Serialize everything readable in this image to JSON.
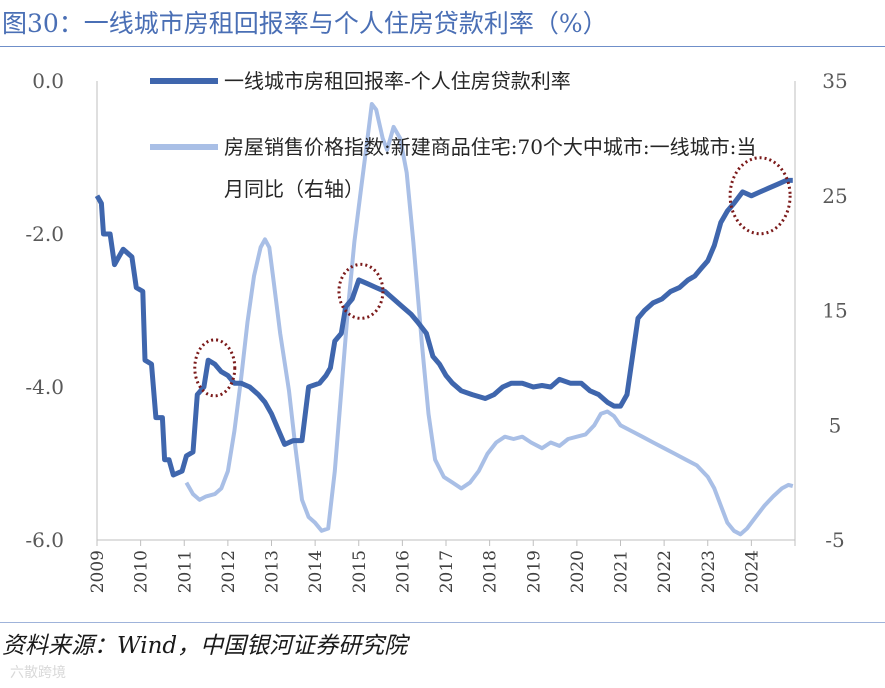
{
  "title": "图30：一线城市房租回报率与个人住房贷款利率（%）",
  "source": "资料来源：Wind，中国银河证券研究院",
  "watermark": "六散跨境",
  "colors": {
    "series1": "#3f66ad",
    "series2": "#a9bfe6",
    "highlight": "#7b1a1a",
    "axis": "#bfbfbf"
  },
  "chart_data": {
    "type": "line",
    "title": "",
    "y_left": {
      "min": -6,
      "max": 0,
      "ticks": [
        "0.0",
        "-2.0",
        "-4.0",
        "-6.0"
      ],
      "tick_values": [
        0,
        -2,
        -4,
        -6
      ]
    },
    "y_right": {
      "min": -5,
      "max": 35,
      "ticks": [
        "35",
        "25",
        "15",
        "5",
        "-5"
      ],
      "tick_values": [
        35,
        25,
        15,
        5,
        -5
      ]
    },
    "x": {
      "min": 2009,
      "max": 2025,
      "ticks": [
        "2009",
        "2010",
        "2011",
        "2012",
        "2013",
        "2014",
        "2015",
        "2016",
        "2017",
        "2018",
        "2019",
        "2020",
        "2021",
        "2022",
        "2023",
        "2024"
      ]
    },
    "legend": [
      "一线城市房租回报率-个人住房贷款利率",
      "房屋销售价格指数:新建商品住宅:70个大中城市:一线城市:当",
      "月同比（右轴）"
    ],
    "series": [
      {
        "name": "一线城市房租回报率-个人住房贷款利率",
        "axis": "left",
        "points": [
          [
            2009.0,
            -1.5
          ],
          [
            2009.1,
            -1.6
          ],
          [
            2009.15,
            -2.0
          ],
          [
            2009.3,
            -2.0
          ],
          [
            2009.4,
            -2.4
          ],
          [
            2009.5,
            -2.3
          ],
          [
            2009.6,
            -2.2
          ],
          [
            2009.8,
            -2.3
          ],
          [
            2009.9,
            -2.7
          ],
          [
            2010.05,
            -2.75
          ],
          [
            2010.1,
            -3.65
          ],
          [
            2010.25,
            -3.7
          ],
          [
            2010.35,
            -4.4
          ],
          [
            2010.5,
            -4.4
          ],
          [
            2010.55,
            -4.95
          ],
          [
            2010.65,
            -4.95
          ],
          [
            2010.75,
            -5.15
          ],
          [
            2010.95,
            -5.1
          ],
          [
            2011.05,
            -4.9
          ],
          [
            2011.2,
            -4.85
          ],
          [
            2011.3,
            -4.1
          ],
          [
            2011.45,
            -4.0
          ],
          [
            2011.55,
            -3.65
          ],
          [
            2011.7,
            -3.7
          ],
          [
            2011.85,
            -3.8
          ],
          [
            2012.0,
            -3.85
          ],
          [
            2012.15,
            -3.95
          ],
          [
            2012.3,
            -3.95
          ],
          [
            2012.5,
            -4.0
          ],
          [
            2012.7,
            -4.1
          ],
          [
            2012.85,
            -4.2
          ],
          [
            2013.0,
            -4.35
          ],
          [
            2013.15,
            -4.55
          ],
          [
            2013.3,
            -4.75
          ],
          [
            2013.5,
            -4.7
          ],
          [
            2013.7,
            -4.7
          ],
          [
            2013.85,
            -4.0
          ],
          [
            2014.1,
            -3.95
          ],
          [
            2014.25,
            -3.85
          ],
          [
            2014.35,
            -3.75
          ],
          [
            2014.45,
            -3.4
          ],
          [
            2014.6,
            -3.3
          ],
          [
            2014.7,
            -2.95
          ],
          [
            2014.85,
            -2.85
          ],
          [
            2015.0,
            -2.6
          ],
          [
            2015.2,
            -2.65
          ],
          [
            2015.4,
            -2.7
          ],
          [
            2015.6,
            -2.75
          ],
          [
            2015.8,
            -2.85
          ],
          [
            2016.0,
            -2.95
          ],
          [
            2016.2,
            -3.05
          ],
          [
            2016.35,
            -3.15
          ],
          [
            2016.55,
            -3.3
          ],
          [
            2016.7,
            -3.6
          ],
          [
            2016.85,
            -3.7
          ],
          [
            2017.0,
            -3.85
          ],
          [
            2017.15,
            -3.95
          ],
          [
            2017.35,
            -4.05
          ],
          [
            2017.6,
            -4.1
          ],
          [
            2017.9,
            -4.15
          ],
          [
            2018.1,
            -4.1
          ],
          [
            2018.3,
            -4.0
          ],
          [
            2018.5,
            -3.95
          ],
          [
            2018.75,
            -3.95
          ],
          [
            2019.0,
            -4.0
          ],
          [
            2019.2,
            -3.98
          ],
          [
            2019.4,
            -4.0
          ],
          [
            2019.6,
            -3.9
          ],
          [
            2019.85,
            -3.95
          ],
          [
            2020.1,
            -3.95
          ],
          [
            2020.3,
            -4.05
          ],
          [
            2020.5,
            -4.1
          ],
          [
            2020.7,
            -4.2
          ],
          [
            2020.85,
            -4.25
          ],
          [
            2021.0,
            -4.25
          ],
          [
            2021.15,
            -4.1
          ],
          [
            2021.3,
            -3.5
          ],
          [
            2021.4,
            -3.1
          ],
          [
            2021.55,
            -3.0
          ],
          [
            2021.75,
            -2.9
          ],
          [
            2021.95,
            -2.85
          ],
          [
            2022.15,
            -2.75
          ],
          [
            2022.35,
            -2.7
          ],
          [
            2022.55,
            -2.6
          ],
          [
            2022.7,
            -2.55
          ],
          [
            2022.85,
            -2.45
          ],
          [
            2023.0,
            -2.35
          ],
          [
            2023.15,
            -2.15
          ],
          [
            2023.3,
            -1.85
          ],
          [
            2023.45,
            -1.7
          ],
          [
            2023.6,
            -1.6
          ],
          [
            2023.8,
            -1.45
          ],
          [
            2024.0,
            -1.5
          ],
          [
            2024.2,
            -1.45
          ],
          [
            2024.4,
            -1.4
          ],
          [
            2024.6,
            -1.35
          ],
          [
            2024.8,
            -1.3
          ],
          [
            2024.95,
            -1.3
          ]
        ]
      },
      {
        "name": "房屋销售价格指数:新建商品住宅:70个大中城市:一线城市:当月同比（右轴）",
        "axis": "right",
        "points": [
          [
            2011.05,
            0.0
          ],
          [
            2011.2,
            -1.0
          ],
          [
            2011.35,
            -1.5
          ],
          [
            2011.5,
            -1.2
          ],
          [
            2011.7,
            -1.0
          ],
          [
            2011.85,
            -0.5
          ],
          [
            2012.0,
            1.0
          ],
          [
            2012.15,
            4.5
          ],
          [
            2012.3,
            9.0
          ],
          [
            2012.45,
            14.0
          ],
          [
            2012.6,
            18.0
          ],
          [
            2012.75,
            20.5
          ],
          [
            2012.85,
            21.2
          ],
          [
            2012.95,
            20.5
          ],
          [
            2013.05,
            17.5
          ],
          [
            2013.2,
            13.0
          ],
          [
            2013.4,
            8.0
          ],
          [
            2013.55,
            3.0
          ],
          [
            2013.7,
            -1.5
          ],
          [
            2013.85,
            -3.0
          ],
          [
            2014.0,
            -3.5
          ],
          [
            2014.15,
            -4.2
          ],
          [
            2014.3,
            -4.0
          ],
          [
            2014.45,
            1.0
          ],
          [
            2014.6,
            8.0
          ],
          [
            2014.75,
            15.0
          ],
          [
            2014.9,
            21.0
          ],
          [
            2015.05,
            25.5
          ],
          [
            2015.2,
            30.0
          ],
          [
            2015.3,
            33.0
          ],
          [
            2015.4,
            32.5
          ],
          [
            2015.55,
            30.0
          ],
          [
            2015.65,
            29.0
          ],
          [
            2015.8,
            31.0
          ],
          [
            2015.95,
            30.0
          ],
          [
            2016.1,
            27.0
          ],
          [
            2016.25,
            21.0
          ],
          [
            2016.45,
            12.0
          ],
          [
            2016.6,
            6.0
          ],
          [
            2016.75,
            2.0
          ],
          [
            2016.95,
            0.5
          ],
          [
            2017.15,
            0.0
          ],
          [
            2017.35,
            -0.5
          ],
          [
            2017.55,
            0.0
          ],
          [
            2017.75,
            1.0
          ],
          [
            2017.95,
            2.5
          ],
          [
            2018.15,
            3.5
          ],
          [
            2018.35,
            4.0
          ],
          [
            2018.55,
            3.8
          ],
          [
            2018.75,
            4.0
          ],
          [
            2018.95,
            3.5
          ],
          [
            2019.2,
            3.0
          ],
          [
            2019.4,
            3.5
          ],
          [
            2019.6,
            3.2
          ],
          [
            2019.8,
            3.8
          ],
          [
            2020.0,
            4.0
          ],
          [
            2020.2,
            4.2
          ],
          [
            2020.4,
            5.0
          ],
          [
            2020.55,
            6.0
          ],
          [
            2020.7,
            6.2
          ],
          [
            2020.85,
            5.8
          ],
          [
            2021.0,
            5.0
          ],
          [
            2021.25,
            4.5
          ],
          [
            2021.5,
            4.0
          ],
          [
            2021.75,
            3.5
          ],
          [
            2022.0,
            3.0
          ],
          [
            2022.25,
            2.5
          ],
          [
            2022.5,
            2.0
          ],
          [
            2022.75,
            1.5
          ],
          [
            2023.0,
            0.5
          ],
          [
            2023.15,
            -0.5
          ],
          [
            2023.3,
            -2.0
          ],
          [
            2023.45,
            -3.5
          ],
          [
            2023.6,
            -4.2
          ],
          [
            2023.75,
            -4.5
          ],
          [
            2023.9,
            -4.0
          ],
          [
            2024.1,
            -3.0
          ],
          [
            2024.3,
            -2.0
          ],
          [
            2024.5,
            -1.2
          ],
          [
            2024.7,
            -0.5
          ],
          [
            2024.85,
            -0.2
          ],
          [
            2024.95,
            -0.3
          ]
        ]
      }
    ],
    "annotations": [
      {
        "type": "ellipse",
        "x": 2011.7,
        "y": -3.75,
        "axis": "left"
      },
      {
        "type": "ellipse",
        "x": 2015.05,
        "y": -2.75,
        "axis": "left"
      },
      {
        "type": "ellipse",
        "x": 2024.2,
        "y": -1.5,
        "axis": "left"
      }
    ]
  }
}
